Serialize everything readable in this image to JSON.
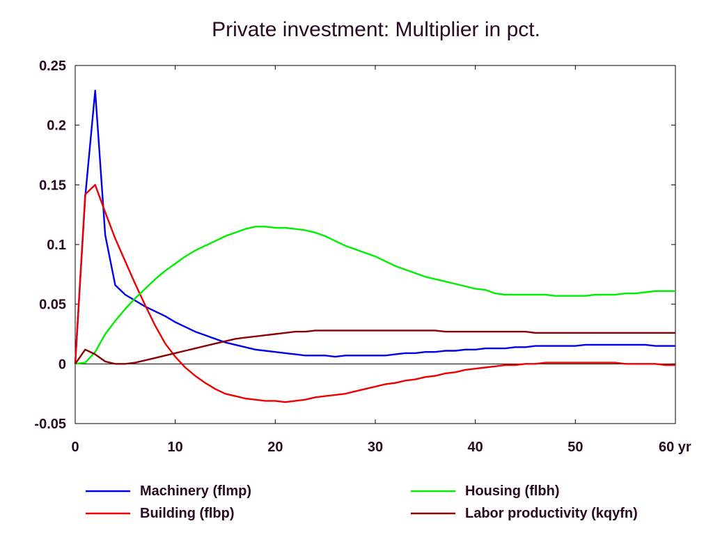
{
  "chart_data": {
    "type": "line",
    "title": "Private investment: Multiplier in pct.",
    "xlabel": "",
    "ylabel": "",
    "xlim": [
      0,
      60
    ],
    "ylim": [
      -0.05,
      0.25
    ],
    "xticks": [
      0,
      10,
      20,
      30,
      40,
      50,
      60
    ],
    "xtick_labels": [
      "0",
      "10",
      "20",
      "30",
      "40",
      "50",
      "60 yr"
    ],
    "yticks": [
      -0.05,
      0,
      0.05,
      0.1,
      0.15,
      0.2,
      0.25
    ],
    "ytick_labels": [
      "-0.05",
      "0",
      "0.05",
      "0.1",
      "0.15",
      "0.2",
      "0.25"
    ],
    "zero_line": true,
    "grid": false,
    "legend_position": "bottom",
    "series": [
      {
        "name": "Machinery (flmp)",
        "color": "#0000ee",
        "x": [
          0,
          1,
          2,
          3,
          4,
          5,
          6,
          7,
          8,
          9,
          10,
          11,
          12,
          13,
          14,
          15,
          16,
          17,
          18,
          19,
          20,
          21,
          22,
          23,
          24,
          25,
          26,
          27,
          28,
          29,
          30,
          31,
          32,
          33,
          34,
          35,
          36,
          37,
          38,
          39,
          40,
          41,
          42,
          43,
          44,
          45,
          46,
          47,
          48,
          49,
          50,
          51,
          52,
          53,
          54,
          55,
          56,
          57,
          58,
          59,
          60
        ],
        "y": [
          0,
          0.14,
          0.229,
          0.108,
          0.066,
          0.058,
          0.053,
          0.048,
          0.044,
          0.04,
          0.035,
          0.031,
          0.027,
          0.024,
          0.021,
          0.018,
          0.016,
          0.014,
          0.012,
          0.011,
          0.01,
          0.009,
          0.008,
          0.007,
          0.007,
          0.007,
          0.006,
          0.007,
          0.007,
          0.007,
          0.007,
          0.007,
          0.008,
          0.009,
          0.009,
          0.01,
          0.01,
          0.011,
          0.011,
          0.012,
          0.012,
          0.013,
          0.013,
          0.013,
          0.014,
          0.014,
          0.015,
          0.015,
          0.015,
          0.015,
          0.015,
          0.016,
          0.016,
          0.016,
          0.016,
          0.016,
          0.016,
          0.016,
          0.015,
          0.015,
          0.015
        ]
      },
      {
        "name": "Building (flbp)",
        "color": "#ee0000",
        "x": [
          0,
          1,
          2,
          3,
          4,
          5,
          6,
          7,
          8,
          9,
          10,
          11,
          12,
          13,
          14,
          15,
          16,
          17,
          18,
          19,
          20,
          21,
          22,
          23,
          24,
          25,
          26,
          27,
          28,
          29,
          30,
          31,
          32,
          33,
          34,
          35,
          36,
          37,
          38,
          39,
          40,
          41,
          42,
          43,
          44,
          45,
          46,
          47,
          48,
          49,
          50,
          51,
          52,
          53,
          54,
          55,
          56,
          57,
          58,
          59,
          60
        ],
        "y": [
          0,
          0.142,
          0.15,
          0.127,
          0.105,
          0.086,
          0.067,
          0.049,
          0.032,
          0.017,
          0.006,
          -0.003,
          -0.01,
          -0.016,
          -0.021,
          -0.025,
          -0.027,
          -0.029,
          -0.03,
          -0.031,
          -0.031,
          -0.032,
          -0.031,
          -0.03,
          -0.028,
          -0.027,
          -0.026,
          -0.025,
          -0.023,
          -0.021,
          -0.019,
          -0.017,
          -0.016,
          -0.014,
          -0.013,
          -0.011,
          -0.01,
          -0.008,
          -0.007,
          -0.005,
          -0.004,
          -0.003,
          -0.002,
          -0.001,
          -0.001,
          -0.0,
          0.0,
          0.001,
          0.001,
          0.001,
          0.001,
          0.001,
          0.001,
          0.001,
          0.001,
          0.0,
          0.0,
          0.0,
          -0.0,
          -0.001,
          -0.001
        ]
      },
      {
        "name": "Housing (flbh)",
        "color": "#00ee00",
        "x": [
          0,
          1,
          2,
          3,
          4,
          5,
          6,
          7,
          8,
          9,
          10,
          11,
          12,
          13,
          14,
          15,
          16,
          17,
          18,
          19,
          20,
          21,
          22,
          23,
          24,
          25,
          26,
          27,
          28,
          29,
          30,
          31,
          32,
          33,
          34,
          35,
          36,
          37,
          38,
          39,
          40,
          41,
          42,
          43,
          44,
          45,
          46,
          47,
          48,
          49,
          50,
          51,
          52,
          53,
          54,
          55,
          56,
          57,
          58,
          59,
          60
        ],
        "y": [
          0,
          0.001,
          0.01,
          0.025,
          0.036,
          0.046,
          0.055,
          0.063,
          0.071,
          0.078,
          0.084,
          0.09,
          0.095,
          0.099,
          0.103,
          0.107,
          0.11,
          0.113,
          0.115,
          0.115,
          0.114,
          0.114,
          0.113,
          0.112,
          0.11,
          0.107,
          0.103,
          0.099,
          0.096,
          0.093,
          0.09,
          0.086,
          0.082,
          0.079,
          0.076,
          0.073,
          0.071,
          0.069,
          0.067,
          0.065,
          0.063,
          0.062,
          0.059,
          0.058,
          0.058,
          0.058,
          0.058,
          0.058,
          0.057,
          0.057,
          0.057,
          0.057,
          0.058,
          0.058,
          0.058,
          0.059,
          0.059,
          0.06,
          0.061,
          0.061,
          0.061
        ]
      },
      {
        "name": "Labor productivity (kqyfn)",
        "color": "#8b0000",
        "x": [
          0,
          1,
          2,
          3,
          4,
          5,
          6,
          7,
          8,
          9,
          10,
          11,
          12,
          13,
          14,
          15,
          16,
          17,
          18,
          19,
          20,
          21,
          22,
          23,
          24,
          25,
          26,
          27,
          28,
          29,
          30,
          31,
          32,
          33,
          34,
          35,
          36,
          37,
          38,
          39,
          40,
          41,
          42,
          43,
          44,
          45,
          46,
          47,
          48,
          49,
          50,
          51,
          52,
          53,
          54,
          55,
          56,
          57,
          58,
          59,
          60
        ],
        "y": [
          0,
          0.012,
          0.008,
          0.002,
          0.0,
          0.0,
          0.001,
          0.003,
          0.005,
          0.007,
          0.009,
          0.011,
          0.013,
          0.015,
          0.017,
          0.019,
          0.021,
          0.022,
          0.023,
          0.024,
          0.025,
          0.026,
          0.027,
          0.027,
          0.028,
          0.028,
          0.028,
          0.028,
          0.028,
          0.028,
          0.028,
          0.028,
          0.028,
          0.028,
          0.028,
          0.028,
          0.028,
          0.027,
          0.027,
          0.027,
          0.027,
          0.027,
          0.027,
          0.027,
          0.027,
          0.027,
          0.026,
          0.026,
          0.026,
          0.026,
          0.026,
          0.026,
          0.026,
          0.026,
          0.026,
          0.026,
          0.026,
          0.026,
          0.026,
          0.026,
          0.026
        ]
      }
    ]
  }
}
